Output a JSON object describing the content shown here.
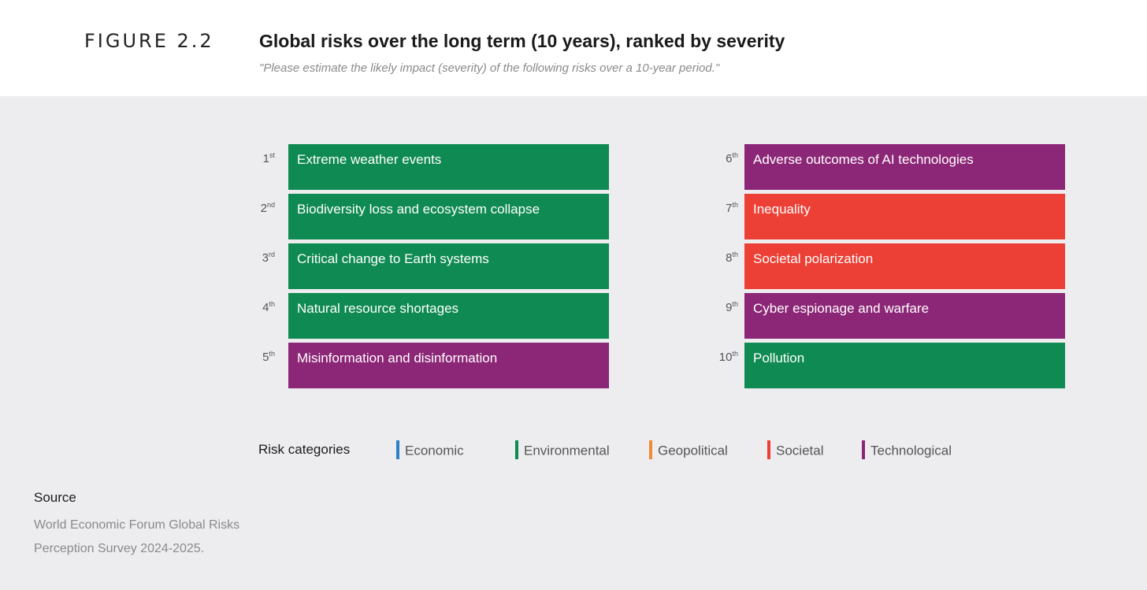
{
  "header": {
    "figure_label": "FIGURE 2.2",
    "title": "Global risks over the long term (10 years), ranked by severity",
    "subtitle": "\"Please estimate the likely impact (severity) of the following risks over a 10-year period.\""
  },
  "chart_data": {
    "type": "table",
    "title": "Global risks over the long term (10 years), ranked by severity",
    "subtitle": "\"Please estimate the likely impact (severity) of the following risks over a 10-year period.\"",
    "rankings": [
      {
        "rank": "1",
        "suffix": "st",
        "label": "Extreme weather events",
        "category": "Environmental"
      },
      {
        "rank": "2",
        "suffix": "nd",
        "label": "Biodiversity loss and ecosystem collapse",
        "category": "Environmental"
      },
      {
        "rank": "3",
        "suffix": "rd",
        "label": "Critical change to Earth systems",
        "category": "Environmental"
      },
      {
        "rank": "4",
        "suffix": "th",
        "label": "Natural resource shortages",
        "category": "Environmental"
      },
      {
        "rank": "5",
        "suffix": "th",
        "label": "Misinformation and disinformation",
        "category": "Technological"
      },
      {
        "rank": "6",
        "suffix": "th",
        "label": "Adverse outcomes of AI technologies",
        "category": "Technological"
      },
      {
        "rank": "7",
        "suffix": "th",
        "label": "Inequality",
        "category": "Societal"
      },
      {
        "rank": "8",
        "suffix": "th",
        "label": "Societal polarization",
        "category": "Societal"
      },
      {
        "rank": "9",
        "suffix": "th",
        "label": "Cyber espionage and warfare",
        "category": "Technological"
      },
      {
        "rank": "10",
        "suffix": "th",
        "label": "Pollution",
        "category": "Environmental"
      }
    ],
    "legend": {
      "title": "Risk categories",
      "position": "bottom",
      "items": [
        {
          "name": "Economic",
          "color": "#2f7fc8"
        },
        {
          "name": "Environmental",
          "color": "#0f8a52"
        },
        {
          "name": "Geopolitical",
          "color": "#f08a36"
        },
        {
          "name": "Societal",
          "color": "#ec3f35"
        },
        {
          "name": "Technological",
          "color": "#8c2676"
        }
      ]
    }
  },
  "source": {
    "title": "Source",
    "text": "World Economic Forum Global Risks Perception Survey 2024-2025."
  }
}
